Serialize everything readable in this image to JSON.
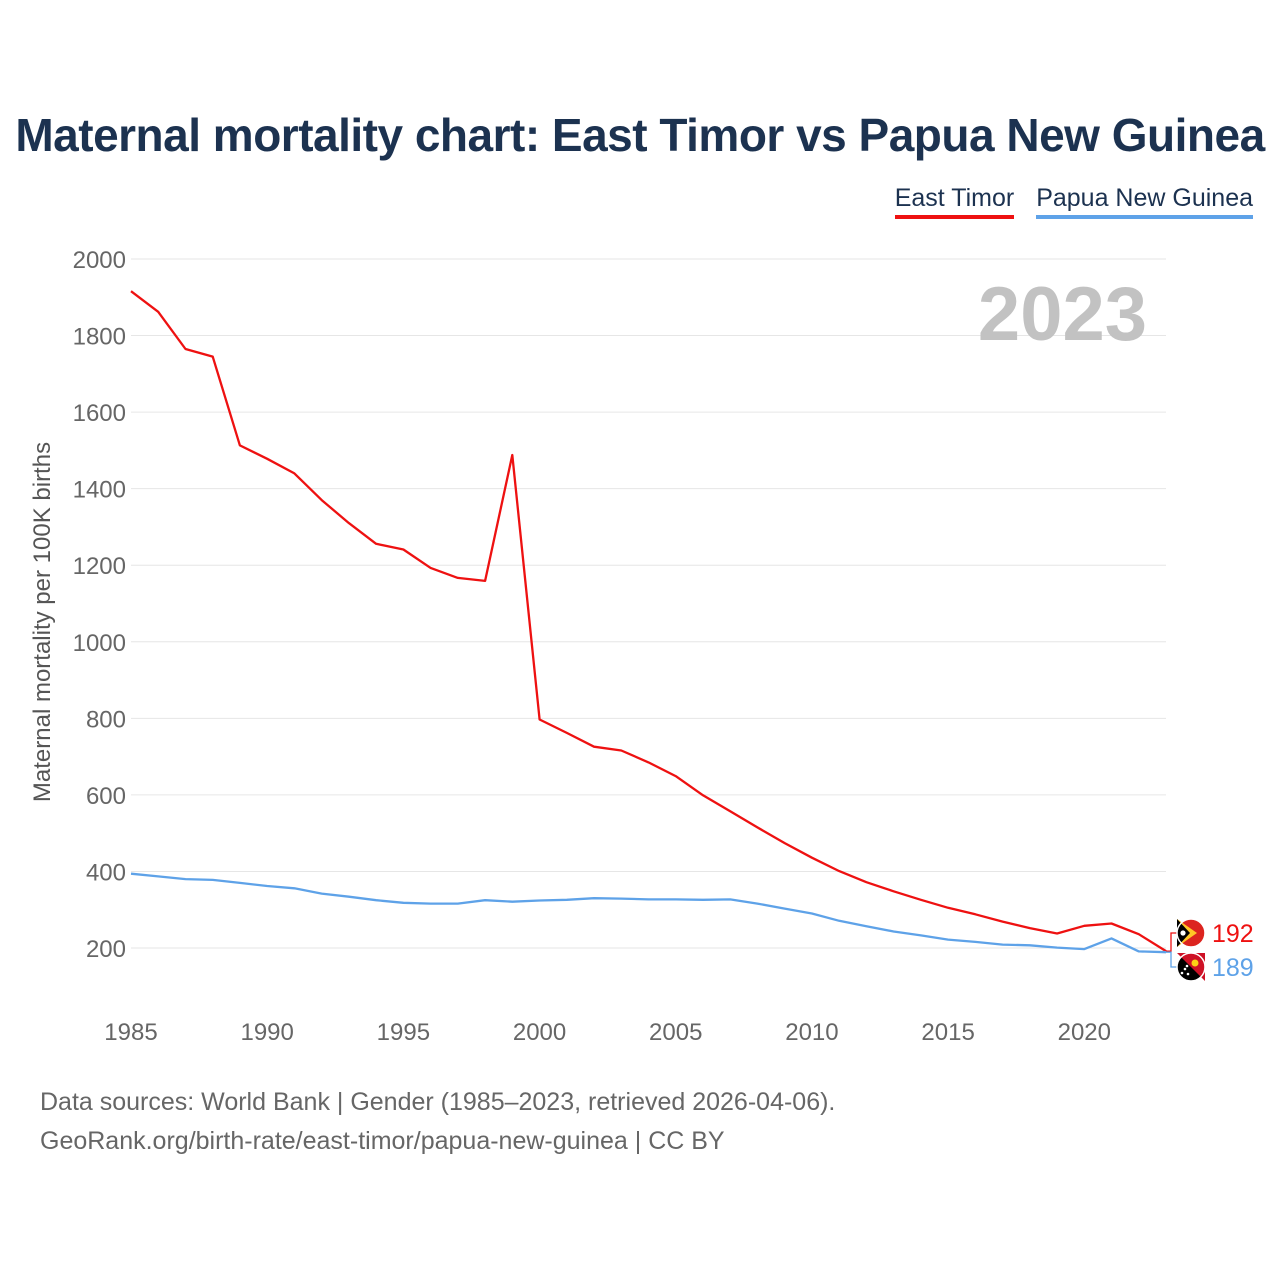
{
  "title": "Maternal mortality chart: East Timor vs Papua New Guinea",
  "year_label": "2023",
  "source_line1": "Data sources: World Bank | Gender (1985–2023, retrieved 2026-04-06).",
  "source_line2": "GeoRank.org/birth-rate/east-timor/papua-new-guinea | CC BY",
  "chart_data": {
    "type": "line",
    "title": "Maternal mortality chart: East Timor vs Papua New Guinea",
    "xlabel": "",
    "ylabel": "Maternal mortality per 100K births",
    "xlim": [
      1985,
      2023
    ],
    "ylim": [
      100,
      2000
    ],
    "x_ticks": [
      1985,
      1990,
      1995,
      2000,
      2005,
      2010,
      2015,
      2020
    ],
    "y_ticks": [
      200,
      400,
      600,
      800,
      1000,
      1200,
      1400,
      1600,
      1800,
      2000
    ],
    "grid": true,
    "legend_position": "top-right",
    "x": [
      1985,
      1986,
      1987,
      1988,
      1989,
      1990,
      1991,
      1992,
      1993,
      1994,
      1995,
      1996,
      1997,
      1998,
      1999,
      2000,
      2001,
      2002,
      2003,
      2004,
      2005,
      2006,
      2007,
      2008,
      2009,
      2010,
      2011,
      2012,
      2013,
      2014,
      2015,
      2016,
      2017,
      2018,
      2019,
      2020,
      2021,
      2022,
      2023
    ],
    "series": [
      {
        "name": "East Timor",
        "color": "#ee1111",
        "end_label": "192",
        "flag_icon": "east-timor-flag-icon",
        "values": [
          1916,
          1862,
          1765,
          1745,
          1513,
          1478,
          1440,
          1370,
          1310,
          1256,
          1241,
          1193,
          1167,
          1159,
          1488,
          797,
          762,
          726,
          716,
          685,
          649,
          599,
          557,
          515,
          474,
          436,
          401,
          372,
          348,
          326,
          305,
          288,
          269,
          252,
          238,
          258,
          264,
          236,
          192
        ]
      },
      {
        "name": "Papua New Guinea",
        "color": "#5ea2e8",
        "end_label": "189",
        "flag_icon": "papua-new-guinea-flag-icon",
        "values": [
          394,
          387,
          380,
          378,
          370,
          362,
          356,
          342,
          334,
          325,
          318,
          316,
          316,
          325,
          321,
          324,
          326,
          330,
          329,
          327,
          327,
          326,
          327,
          316,
          303,
          290,
          271,
          257,
          243,
          233,
          222,
          216,
          209,
          207,
          201,
          197,
          225,
          191,
          189
        ]
      }
    ]
  }
}
